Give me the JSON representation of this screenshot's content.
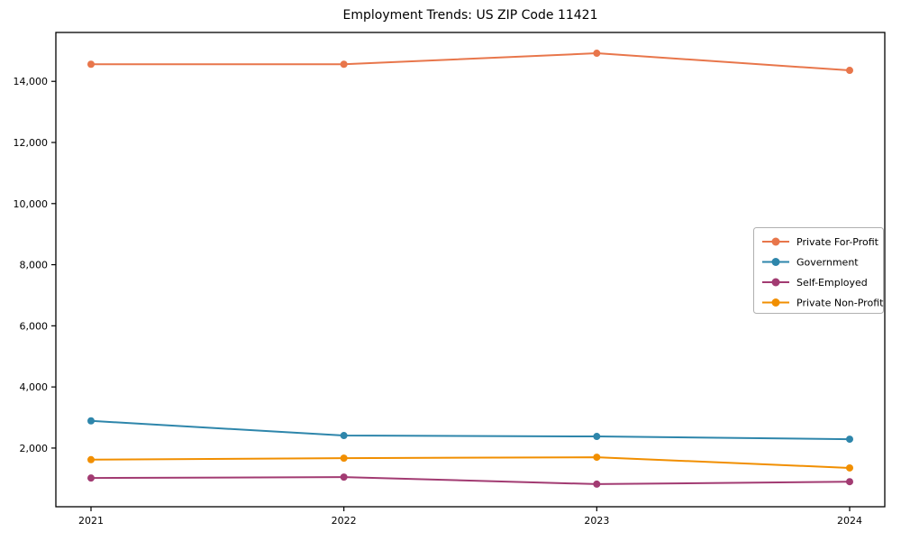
{
  "chart_data": {
    "type": "line",
    "title": "Employment Trends: US ZIP Code 11421",
    "x": [
      2021,
      2022,
      2023,
      2024
    ],
    "x_tick_labels": [
      "2021",
      "2022",
      "2023",
      "2024"
    ],
    "y_ticks": [
      2000,
      4000,
      6000,
      8000,
      10000,
      12000,
      14000
    ],
    "y_tick_labels": [
      "2,000",
      "4,000",
      "6,000",
      "8,000",
      "10,000",
      "12,000",
      "14,000"
    ],
    "ylim": [
      80,
      15600
    ],
    "xlabel": "",
    "ylabel": "",
    "grid": false,
    "legend": {
      "position": "center-right",
      "border_color": "#b0b0b0",
      "background": "#ffffff"
    },
    "axis_color": "#000000",
    "series": [
      {
        "name": "Private For-Profit",
        "color": "#E8764B",
        "values": [
          14560,
          14560,
          14920,
          14360
        ]
      },
      {
        "name": "Government",
        "color": "#2E86AB",
        "values": [
          2890,
          2410,
          2380,
          2290
        ]
      },
      {
        "name": "Self-Employed",
        "color": "#A23B72",
        "values": [
          1020,
          1050,
          820,
          900
        ]
      },
      {
        "name": "Private Non-Profit",
        "color": "#F18F01",
        "values": [
          1620,
          1670,
          1700,
          1350
        ]
      }
    ]
  }
}
